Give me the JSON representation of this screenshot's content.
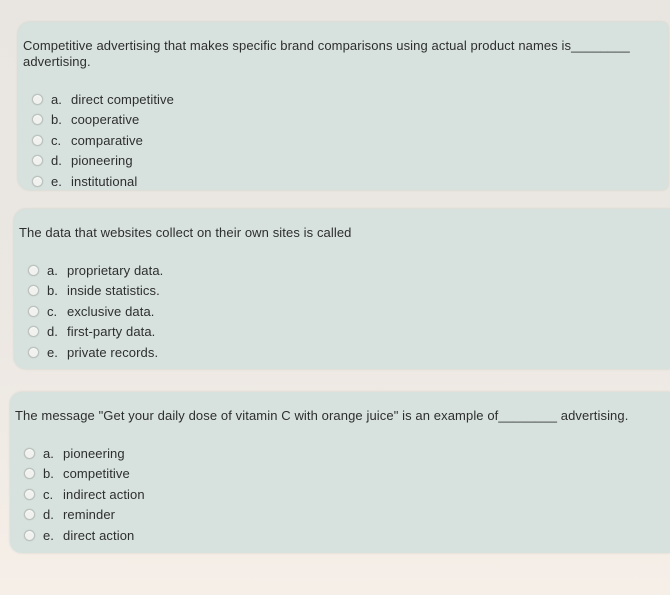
{
  "theme": {
    "background_top": "#e9e6e1",
    "background_bottom": "#f6efe8",
    "card_color": "#d7e2de",
    "text_color": "#2e2e2e"
  },
  "questions": [
    {
      "prompt": "Competitive advertising that makes specific brand comparisons using actual product names is________ advertising.",
      "options": [
        {
          "letter": "a.",
          "label": "direct competitive",
          "selected": false
        },
        {
          "letter": "b.",
          "label": "cooperative",
          "selected": false
        },
        {
          "letter": "c.",
          "label": "comparative",
          "selected": false
        },
        {
          "letter": "d.",
          "label": "pioneering",
          "selected": false
        },
        {
          "letter": "e.",
          "label": "institutional",
          "selected": false
        }
      ]
    },
    {
      "prompt": "The data that websites collect on their own sites is called",
      "options": [
        {
          "letter": "a.",
          "label": "proprietary data.",
          "selected": false
        },
        {
          "letter": "b.",
          "label": "inside statistics.",
          "selected": false
        },
        {
          "letter": "c.",
          "label": "exclusive data.",
          "selected": false
        },
        {
          "letter": "d.",
          "label": "first-party data.",
          "selected": false
        },
        {
          "letter": "e.",
          "label": "private records.",
          "selected": false
        }
      ]
    },
    {
      "prompt": "The message \"Get your daily dose of vitamin C with orange juice\" is an example of________ advertising.",
      "options": [
        {
          "letter": "a.",
          "label": "pioneering",
          "selected": false
        },
        {
          "letter": "b.",
          "label": "competitive",
          "selected": false
        },
        {
          "letter": "c.",
          "label": "indirect action",
          "selected": false
        },
        {
          "letter": "d.",
          "label": "reminder",
          "selected": false
        },
        {
          "letter": "e.",
          "label": "direct action",
          "selected": false
        }
      ]
    }
  ]
}
